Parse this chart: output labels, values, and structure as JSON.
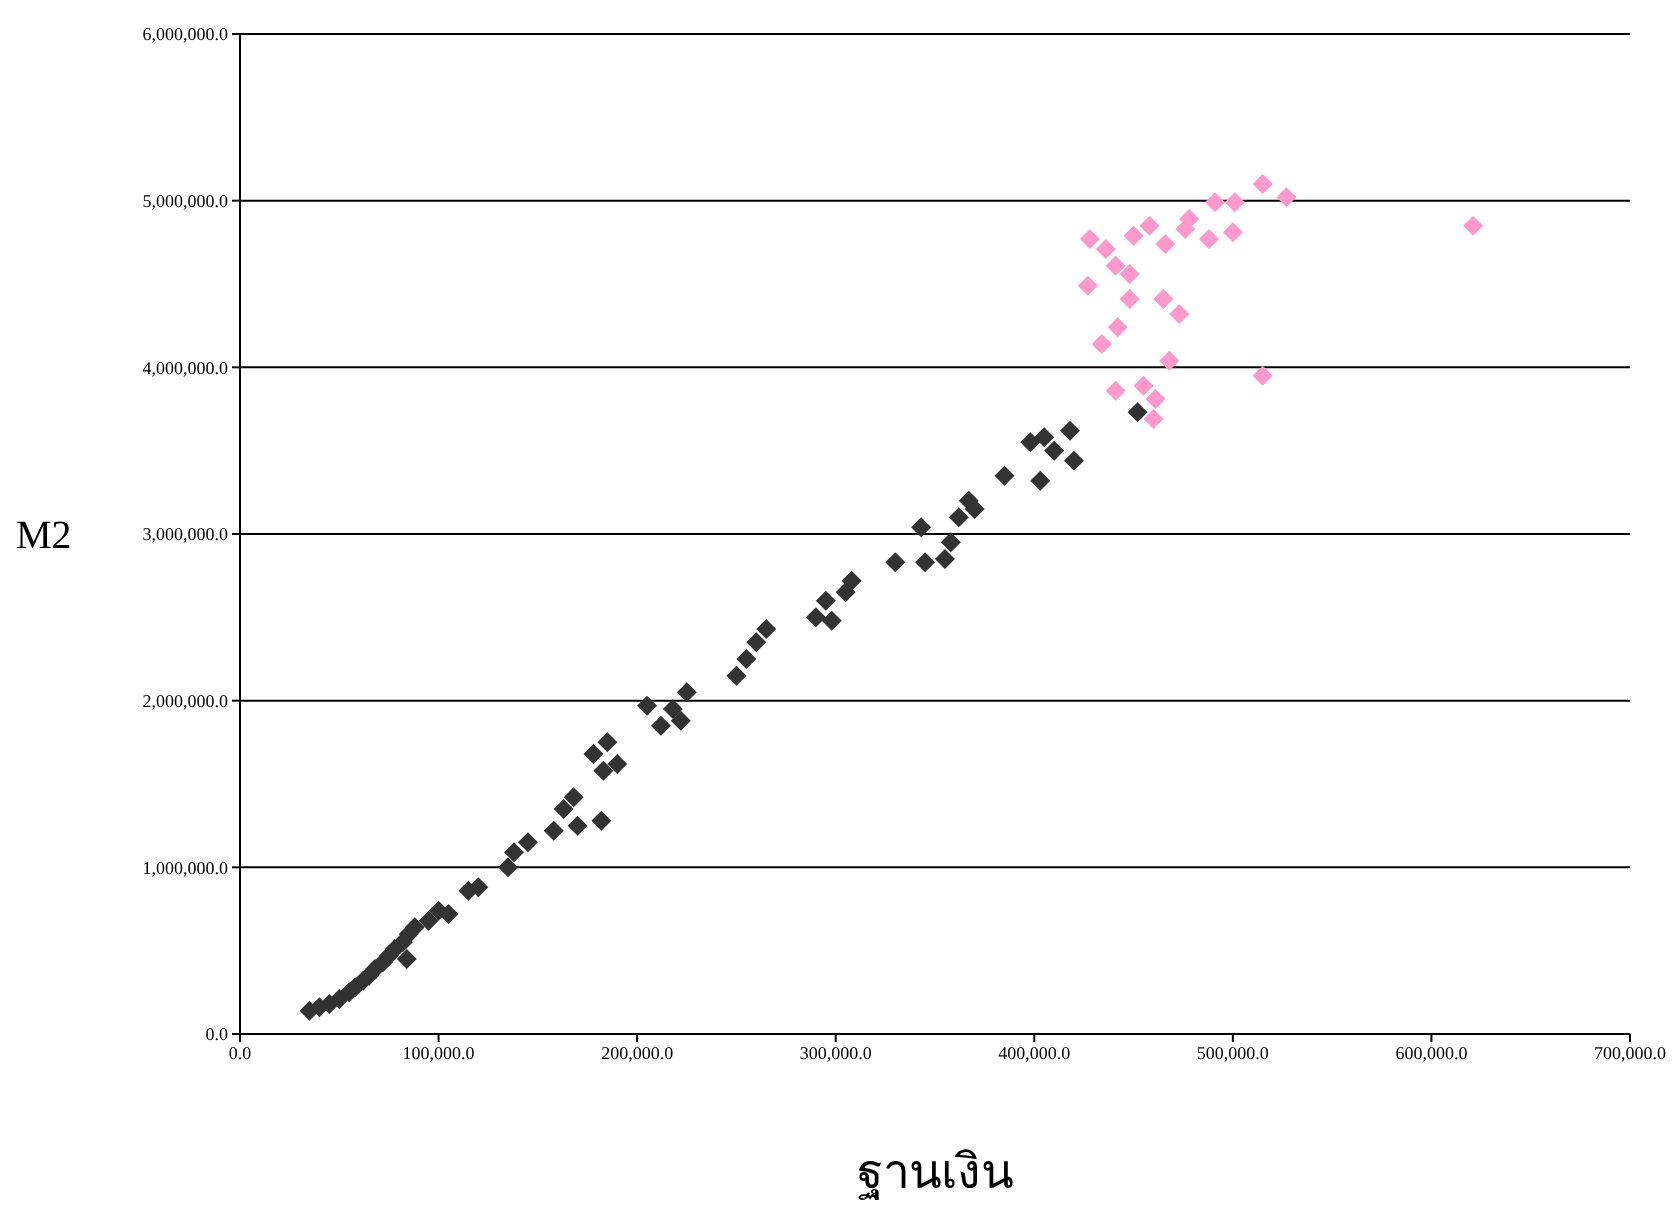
{
  "chart_data": {
    "type": "scatter",
    "xlabel": "ฐานเงิน",
    "ylabel": "M2",
    "marker": "diamond",
    "grid": "y",
    "legend": false,
    "xlim": [
      0,
      700000
    ],
    "ylim": [
      0,
      6000000
    ],
    "xticks": [
      {
        "value": 0,
        "label": "0.0"
      },
      {
        "value": 100000,
        "label": "100,000.0"
      },
      {
        "value": 200000,
        "label": "200,000.0"
      },
      {
        "value": 300000,
        "label": "300,000.0"
      },
      {
        "value": 400000,
        "label": "400,000.0"
      },
      {
        "value": 500000,
        "label": "500,000.0"
      },
      {
        "value": 600000,
        "label": "600,000.0"
      },
      {
        "value": 700000,
        "label": "700,000.0"
      }
    ],
    "yticks": [
      {
        "value": 0,
        "label": "0.0"
      },
      {
        "value": 1000000,
        "label": "1,000,000.0"
      },
      {
        "value": 2000000,
        "label": "2,000,000.0"
      },
      {
        "value": 3000000,
        "label": "3,000,000.0"
      },
      {
        "value": 4000000,
        "label": "4,000,000.0"
      },
      {
        "value": 5000000,
        "label": "5,000,000.0"
      },
      {
        "value": 6000000,
        "label": "6,000,000.0"
      }
    ],
    "series": [
      {
        "color": "#333333",
        "x": [
          35000,
          40000,
          45000,
          50000,
          55000,
          58000,
          62000,
          65000,
          68000,
          72000,
          75000,
          78000,
          82000,
          85000,
          88000,
          84000,
          95000,
          100000,
          105000,
          115000,
          120000,
          135000,
          138000,
          145000,
          158000,
          163000,
          168000,
          170000,
          178000,
          183000,
          185000,
          190000,
          182000,
          205000,
          212000,
          218000,
          225000,
          222000,
          250000,
          255000,
          260000,
          265000,
          290000,
          295000,
          298000,
          305000,
          308000,
          330000,
          343000,
          345000,
          355000,
          358000,
          362000,
          367000,
          370000,
          385000,
          398000,
          403000,
          405000,
          410000,
          418000,
          420000,
          452000
        ],
        "values": [
          140000,
          160000,
          180000,
          210000,
          250000,
          280000,
          320000,
          350000,
          390000,
          430000,
          470000,
          510000,
          550000,
          600000,
          640000,
          450000,
          680000,
          740000,
          720000,
          860000,
          880000,
          1000000,
          1090000,
          1150000,
          1220000,
          1350000,
          1420000,
          1250000,
          1680000,
          1580000,
          1750000,
          1620000,
          1280000,
          1970000,
          1850000,
          1950000,
          2050000,
          1880000,
          2150000,
          2250000,
          2350000,
          2430000,
          2500000,
          2600000,
          2480000,
          2650000,
          2720000,
          2830000,
          3040000,
          2830000,
          2850000,
          2950000,
          3100000,
          3200000,
          3150000,
          3350000,
          3550000,
          3320000,
          3580000,
          3500000,
          3620000,
          3440000,
          3730000
        ]
      },
      {
        "color": "#ff99cc",
        "x": [
          428000,
          436000,
          450000,
          458000,
          466000,
          476000,
          478000,
          491000,
          501000,
          515000,
          527000,
          488000,
          500000,
          621000,
          427000,
          441000,
          448000,
          448000,
          465000,
          473000,
          442000,
          434000,
          468000,
          515000,
          441000,
          455000,
          461000,
          460000
        ],
        "values": [
          4770000,
          4710000,
          4790000,
          4850000,
          4740000,
          4830000,
          4890000,
          4990000,
          4990000,
          5100000,
          5020000,
          4770000,
          4810000,
          4850000,
          4490000,
          4610000,
          4560000,
          4410000,
          4410000,
          4320000,
          4240000,
          4140000,
          4040000,
          3950000,
          3860000,
          3890000,
          3810000,
          3690000
        ]
      }
    ]
  }
}
